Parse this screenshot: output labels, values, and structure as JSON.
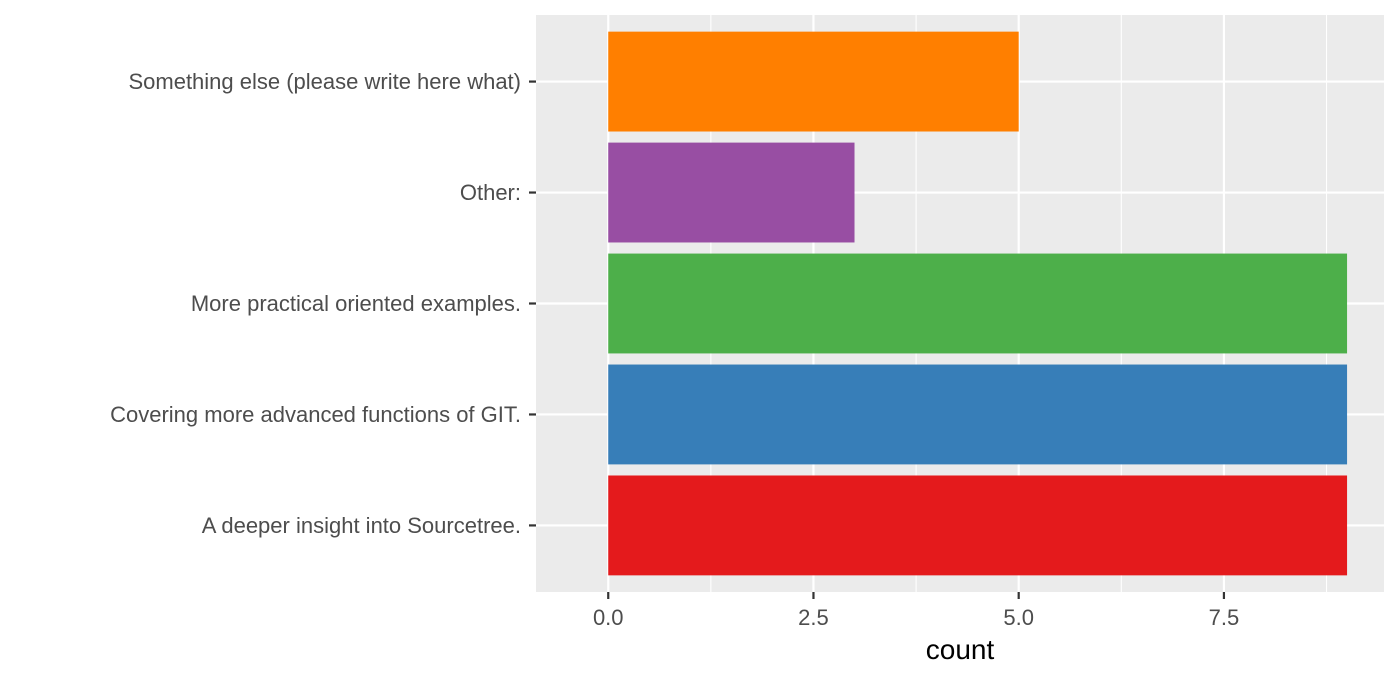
{
  "chart_data": {
    "type": "bar",
    "orientation": "horizontal",
    "categories": [
      "A deeper insight into Sourcetree.",
      "Covering more advanced functions of GIT.",
      "More practical oriented examples.",
      "Other:",
      "Something else (please write here what)"
    ],
    "values": [
      9,
      9,
      9,
      3,
      5
    ],
    "colors": [
      "#E41A1C",
      "#377EB8",
      "#4DAF4A",
      "#984EA3",
      "#FF7F00"
    ],
    "xlabel": "count",
    "ylabel": "",
    "xlim": [
      -0.88,
      9.45
    ],
    "x_ticks": [
      0,
      2.5,
      5,
      7.5
    ],
    "x_tick_labels": [
      "0.0",
      "2.5",
      "5.0",
      "7.5"
    ],
    "grid": true,
    "panel_background": "#EBEBEB",
    "gridline_color": "#FFFFFF",
    "legend": "none"
  }
}
